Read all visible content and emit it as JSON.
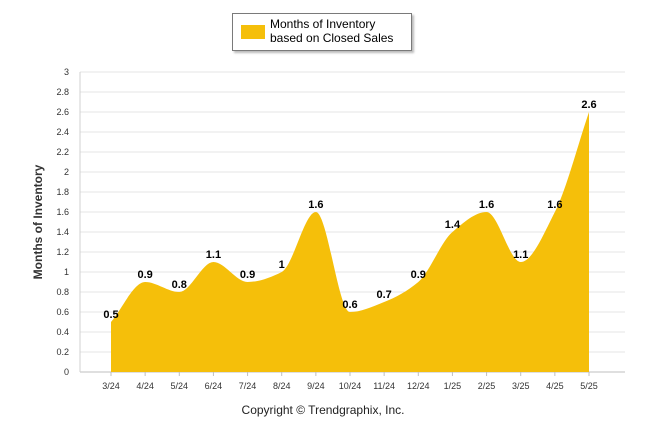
{
  "legend": {
    "label": "Months of Inventory based on Closed Sales",
    "color": "#f5bf0a"
  },
  "credit": "Copyright © Trendgraphix, Inc.",
  "chart_data": {
    "type": "area",
    "ylabel": "Months of Inventory",
    "ylim": [
      0,
      3
    ],
    "yticks": [
      0,
      0.2,
      0.4,
      0.6,
      0.8,
      1,
      1.2,
      1.4,
      1.6,
      1.8,
      2,
      2.2,
      2.4,
      2.6,
      2.8,
      3
    ],
    "ytick_labels": [
      "0",
      "0.2",
      "0.4",
      "0.6",
      "0.8",
      "1",
      "1.2",
      "1.4",
      "1.6",
      "1.8",
      "2",
      "2.2",
      "2.4",
      "2.6",
      "2.8",
      "3"
    ],
    "grid": true,
    "legend_position": "top-center",
    "categories": [
      "3/24",
      "4/24",
      "5/24",
      "6/24",
      "7/24",
      "8/24",
      "9/24",
      "10/24",
      "11/24",
      "12/24",
      "1/25",
      "2/25",
      "3/25",
      "4/25",
      "5/25"
    ],
    "series": [
      {
        "name": "Months of Inventory based on Closed Sales",
        "color": "#f5bf0a",
        "values": [
          0.5,
          0.9,
          0.8,
          1.1,
          0.9,
          1,
          1.6,
          0.6,
          0.7,
          0.9,
          1.4,
          1.6,
          1.1,
          1.6,
          2.6
        ],
        "labels": [
          "0.5",
          "0.9",
          "0.8",
          "1.1",
          "0.9",
          "1",
          "1.6",
          "0.6",
          "0.7",
          "0.9",
          "1.4",
          "1.6",
          "1.1",
          "1.6",
          "2.6"
        ]
      }
    ]
  }
}
